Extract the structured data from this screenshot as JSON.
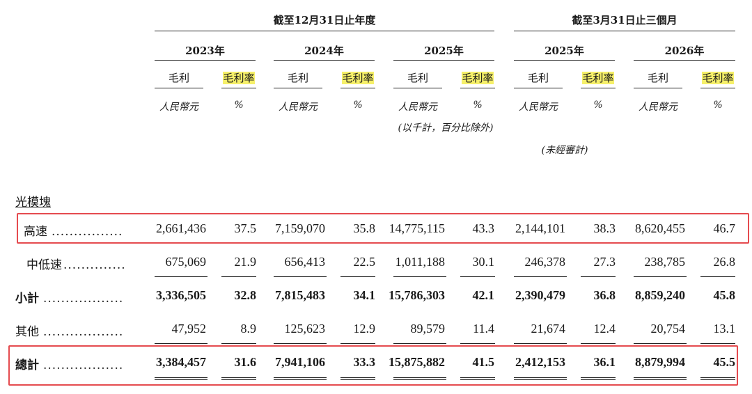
{
  "header": {
    "period_year_end": "截至12月31日止年度",
    "period_three_months": "截至3月31日止三個月",
    "years": [
      "2023年",
      "2024年",
      "2025年",
      "2025年",
      "2026年"
    ],
    "col_gross_profit": "毛利",
    "col_gross_margin": "毛利率",
    "unit_rmb": "人民幣元",
    "unit_pct": "%",
    "note_thousands": "(以千計，百分比除外)",
    "note_unaudited": "(未經審計)"
  },
  "highlight_color": "#f6f06a",
  "box_color": "#e54b4f",
  "section_title": "光模塊",
  "rows": [
    {
      "label": "高速",
      "dots": "................",
      "values": [
        "2,661,436",
        "37.5",
        "7,159,070",
        "35.8",
        "14,775,115",
        "43.3",
        "2,144,101",
        "38.3",
        "8,620,455",
        "46.7"
      ]
    },
    {
      "label": "中低速",
      "dots": "..............",
      "values": [
        "675,069",
        "21.9",
        "656,413",
        "22.5",
        "1,011,188",
        "30.1",
        "246,378",
        "27.3",
        "238,785",
        "26.8"
      ]
    },
    {
      "label": "小計",
      "dots": "..................",
      "values": [
        "3,336,505",
        "32.8",
        "7,815,483",
        "34.1",
        "15,786,303",
        "42.1",
        "2,390,479",
        "36.8",
        "8,859,240",
        "45.8"
      ]
    },
    {
      "label": "其他",
      "dots": "..................",
      "values": [
        "47,952",
        "8.9",
        "125,623",
        "12.9",
        "89,579",
        "11.4",
        "21,674",
        "12.4",
        "20,754",
        "13.1"
      ]
    },
    {
      "label": "總計",
      "dots": "..................",
      "values": [
        "3,384,457",
        "31.6",
        "7,941,106",
        "33.3",
        "15,875,882",
        "41.5",
        "2,412,153",
        "36.1",
        "8,879,994",
        "45.5"
      ]
    }
  ]
}
